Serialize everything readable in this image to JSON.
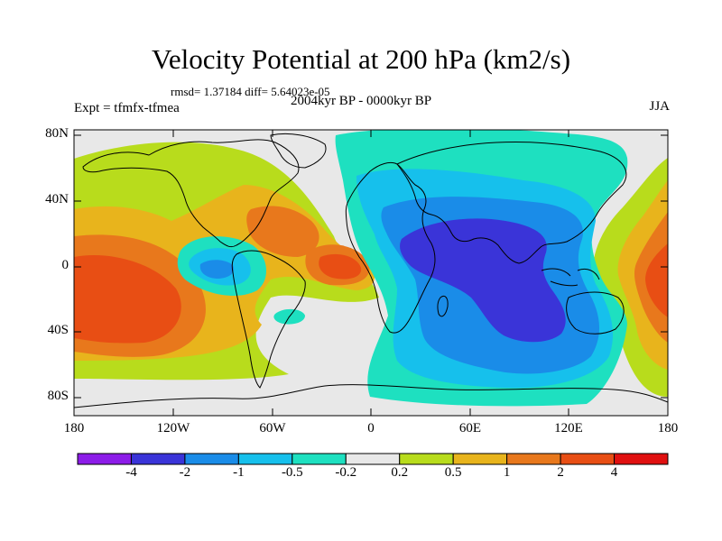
{
  "title": "Velocity Potential at 200 hPa (km2/s)",
  "stats": "rmsd= 1.37184 diff= 5.64023e-05",
  "experiment": "Expt = tfmfx-tfmea",
  "period": "2004kyr BP - 0000kyr BP",
  "season": "JJA",
  "axes": {
    "y_ticks": [
      "80N",
      "40N",
      "0",
      "40S",
      "80S"
    ],
    "x_ticks": [
      "180",
      "120W",
      "60W",
      "0",
      "60E",
      "120E",
      "180"
    ]
  },
  "colorbar": {
    "labels": [
      "-4",
      "-2",
      "-1",
      "-0.5",
      "-0.2",
      "0.2",
      "0.5",
      "1",
      "2",
      "4"
    ],
    "colors": [
      "#8c1ce8",
      "#3a34d8",
      "#1a8ce8",
      "#16c0ec",
      "#1ee0c0",
      "#e8e8e8",
      "#b8dc1c",
      "#e8b41c",
      "#e8781c",
      "#e84e14",
      "#e01010"
    ]
  },
  "field_colors": {
    "neutral": "#e8e8e8",
    "pos_low": "#b8dc1c",
    "pos_mid": "#e8b41c",
    "pos_high": "#e8781c",
    "pos_max": "#e84e14",
    "neg_low": "#1ee0c0",
    "neg_mid": "#16c0ec",
    "neg_high": "#1a8ce8",
    "neg_max": "#3a34d8"
  }
}
